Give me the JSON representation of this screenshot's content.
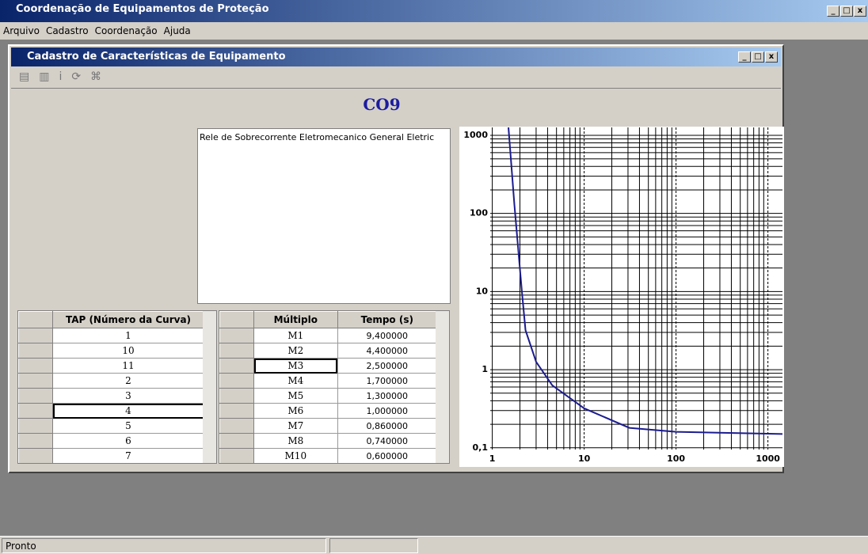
{
  "window": {
    "title": "Coordenação de Equipamentos de Proteção"
  },
  "menu": [
    "Arquivo",
    "Cadastro",
    "Coordenação",
    "Ajuda"
  ],
  "child_window": {
    "title": "Cadastro de Características de Equipamento"
  },
  "equipment": {
    "name": "CO9",
    "description": "Rele de Sobrecorrente Eletromecanico General Eletric"
  },
  "tap_table": {
    "header": "TAP (Número da Curva)",
    "rows": [
      "1",
      "10",
      "11",
      "2",
      "3",
      "4",
      "5",
      "6",
      "7"
    ]
  },
  "curve_table": {
    "headers": [
      "Múltiplo",
      "Tempo (s)"
    ],
    "rows": [
      [
        "M1",
        "9,400000"
      ],
      [
        "M2",
        "4,400000"
      ],
      [
        "M3",
        "2,500000"
      ],
      [
        "M4",
        "1,700000"
      ],
      [
        "M5",
        "1,300000"
      ],
      [
        "M6",
        "1,000000"
      ],
      [
        "M7",
        "0,860000"
      ],
      [
        "M8",
        "0,740000"
      ],
      [
        "M10",
        "0,600000"
      ]
    ]
  },
  "chart": {
    "type": "line",
    "log_x": true,
    "log_y": true,
    "grid": true,
    "color": "#1c1c8f",
    "x": [
      1.5,
      1.74,
      2.1,
      2.3,
      3.0,
      4.5,
      10,
      31,
      100,
      1440
    ],
    "values": [
      1262,
      130,
      10,
      3.2,
      1.26,
      0.63,
      0.32,
      0.18,
      0.16,
      0.15
    ],
    "xlim": [
      0.95,
      1440
    ],
    "ylim": [
      0.095,
      1262
    ],
    "xticks": [
      1,
      10,
      100,
      1000
    ],
    "yticks": [
      {
        "value": 0.1,
        "label": "0,1"
      },
      1,
      10,
      100,
      1000
    ]
  },
  "status": "Pronto"
}
